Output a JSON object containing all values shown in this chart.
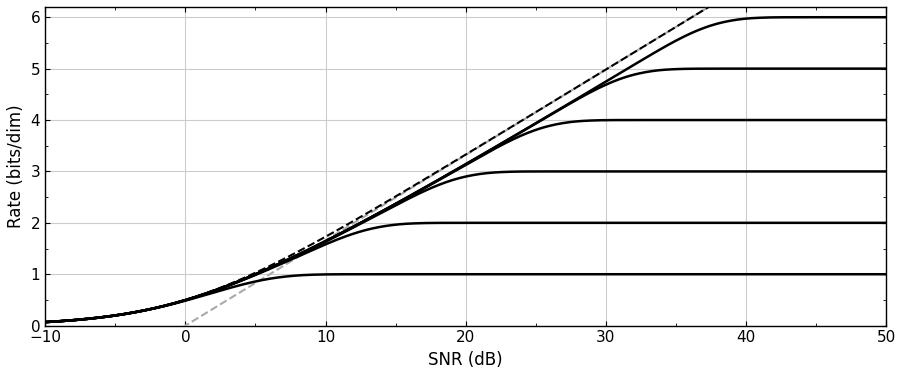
{
  "ylabel": "Rate (bits/dim)",
  "xlabel": "SNR (dB)",
  "background_color": "#ffffff",
  "grid_color": "#cccccc",
  "awgn_color": "#000000",
  "gray_dashed_color": "#aaaaaa",
  "solid_color": "#000000",
  "ylim": [
    0,
    6.2
  ],
  "xlim": [
    -10,
    50
  ],
  "yticks": [
    0,
    1,
    2,
    3,
    4,
    5,
    6
  ],
  "xticks": [
    -10,
    0,
    10,
    20,
    30,
    40,
    50
  ],
  "max_rates": [
    1,
    2,
    3,
    4,
    5,
    6
  ],
  "figsize": [
    9.03,
    3.76
  ],
  "dpi": 100
}
